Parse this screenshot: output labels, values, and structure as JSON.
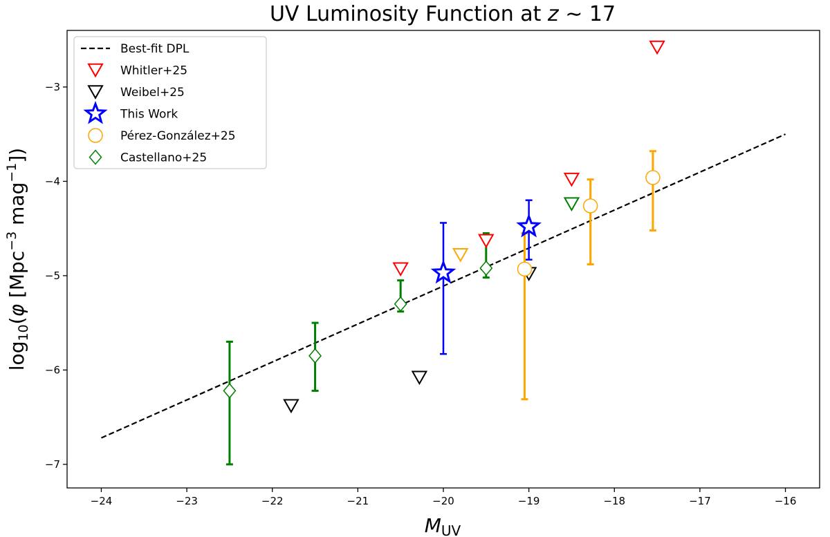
{
  "chart_data": {
    "type": "scatter",
    "title": "UV Luminosity Function at z ∼ 17",
    "title_parts": {
      "prefix": "UV Luminosity Function at ",
      "z": "z",
      "approx": " ∼ 17"
    },
    "xlabel": "M_UV",
    "xlabel_parts": {
      "main": "M",
      "sub": "UV"
    },
    "ylabel": "log10(φ [Mpc^-3 mag^-1])",
    "ylabel_parts": {
      "log": "log",
      "log_sub": "10",
      "open": "(",
      "phi": "φ",
      "bracket": " [Mpc",
      "sup1": "−3",
      "mag": " mag",
      "sup2": "−1",
      "close": "])"
    },
    "xlim": [
      -24.4,
      -15.6
    ],
    "ylim": [
      -7.25,
      -2.4
    ],
    "x_ticks": [
      -24,
      -23,
      -22,
      -21,
      -20,
      -19,
      -18,
      -17,
      -16
    ],
    "x_tick_labels": [
      "−24",
      "−23",
      "−22",
      "−21",
      "−20",
      "−19",
      "−18",
      "−17",
      "−16"
    ],
    "y_ticks": [
      -7,
      -6,
      -5,
      -4,
      -3
    ],
    "y_tick_labels": [
      "−7",
      "−6",
      "−5",
      "−4",
      "−3"
    ],
    "grid": false,
    "legend_position": "top-left",
    "best_fit": {
      "name": "Best-fit DPL",
      "x": [
        -24,
        -16
      ],
      "y": [
        -6.72,
        -3.5
      ],
      "color": "#000000"
    },
    "series": [
      {
        "name": "Whitler+25",
        "marker": "triangle-down",
        "color": "#ff0000",
        "kind": "upper-limit",
        "points": [
          {
            "x": -20.5,
            "y": -4.93
          },
          {
            "x": -19.5,
            "y": -4.63
          },
          {
            "x": -18.5,
            "y": -3.98
          },
          {
            "x": -17.5,
            "y": -2.58
          }
        ]
      },
      {
        "name": "Weibel+25",
        "marker": "triangle-down",
        "color": "#000000",
        "kind": "upper-limit",
        "points": [
          {
            "x": -21.78,
            "y": -6.38
          },
          {
            "x": -20.28,
            "y": -6.08
          },
          {
            "x": -19.0,
            "y": -4.98
          }
        ]
      },
      {
        "name": "This Work",
        "marker": "star",
        "color": "#0000ff",
        "kind": "measurement",
        "points": [
          {
            "x": -20.0,
            "y": -4.97,
            "ylow": -5.83,
            "yhigh": -4.44
          },
          {
            "x": -19.0,
            "y": -4.48,
            "ylow": -4.83,
            "yhigh": -4.2
          }
        ]
      },
      {
        "name": "Pérez-González+25",
        "marker": "circle",
        "color": "#ffa500",
        "kind": "measurement",
        "points": [
          {
            "x": -19.05,
            "y": -4.93,
            "ylow": -6.31,
            "yhigh": -4.55
          },
          {
            "x": -18.28,
            "y": -4.26,
            "ylow": -4.88,
            "yhigh": -3.98
          },
          {
            "x": -17.55,
            "y": -3.96,
            "ylow": -4.52,
            "yhigh": -3.68
          }
        ]
      },
      {
        "name": "Pérez-González+25 (limit)",
        "marker": "triangle-down",
        "color": "#ffa500",
        "kind": "upper-limit",
        "in_legend": false,
        "points": [
          {
            "x": -19.8,
            "y": -4.78
          }
        ]
      },
      {
        "name": "Castellano+25",
        "marker": "diamond",
        "color": "#008000",
        "kind": "measurement",
        "points": [
          {
            "x": -22.5,
            "y": -6.22,
            "ylow": -7.0,
            "yhigh": -5.7
          },
          {
            "x": -21.5,
            "y": -5.85,
            "ylow": -6.22,
            "yhigh": -5.5
          },
          {
            "x": -20.5,
            "y": -5.3,
            "ylow": -5.38,
            "yhigh": -5.05
          },
          {
            "x": -19.5,
            "y": -4.92,
            "ylow": -5.02,
            "yhigh": -4.55
          }
        ]
      },
      {
        "name": "Castellano+25 (limit)",
        "marker": "triangle-down",
        "color": "#008000",
        "kind": "upper-limit",
        "in_legend": false,
        "points": [
          {
            "x": -18.5,
            "y": -4.24
          }
        ]
      }
    ],
    "legend": [
      {
        "label": "Best-fit DPL",
        "marker": "dashed-line",
        "color": "#000000"
      },
      {
        "label": "Whitler+25",
        "marker": "triangle-down",
        "color": "#ff0000"
      },
      {
        "label": "Weibel+25",
        "marker": "triangle-down",
        "color": "#000000"
      },
      {
        "label": "This Work",
        "marker": "star",
        "color": "#0000ff"
      },
      {
        "label": "Pérez-González+25",
        "marker": "circle",
        "color": "#ffa500"
      },
      {
        "label": "Castellano+25",
        "marker": "diamond",
        "color": "#008000"
      }
    ]
  }
}
